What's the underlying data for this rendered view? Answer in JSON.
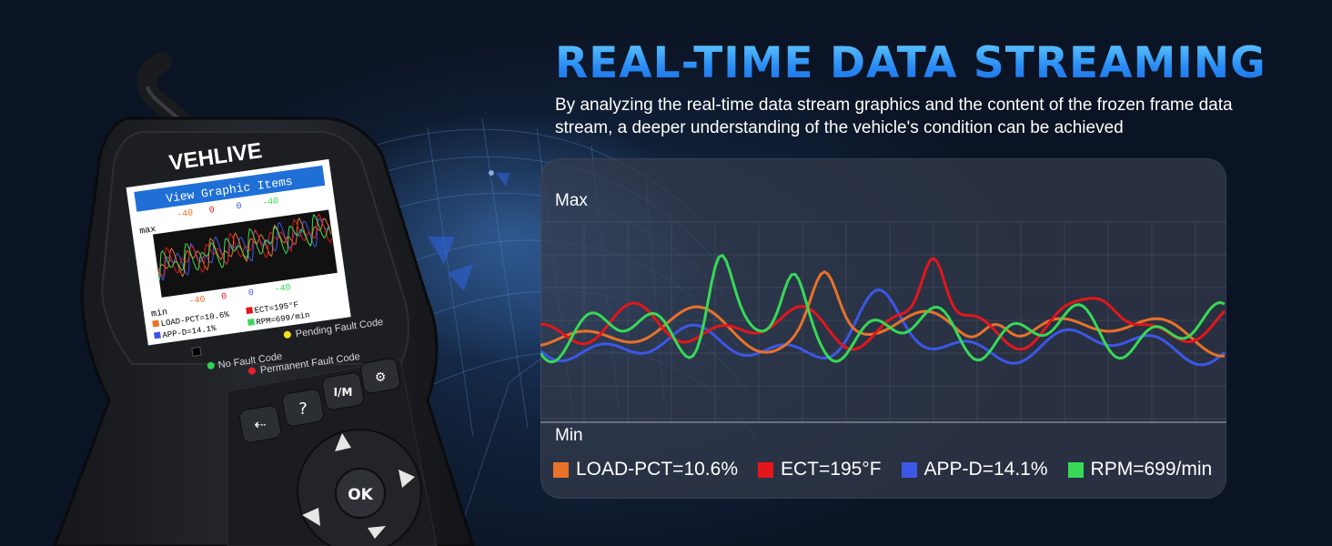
{
  "headline": "REAL-TIME DATA STREAMING",
  "subtitle": "By analyzing the real-time data stream graphics and the content of the frozen frame data stream, a deeper understanding of the vehicle's condition can be achieved",
  "device": {
    "brand": "VEHLIVE",
    "screen": {
      "title": "View Graphic Items",
      "top_values": [
        "-40",
        "0",
        "0",
        "-40"
      ],
      "max_label": "max",
      "min_label": "min",
      "bottom_values": [
        "-40",
        "0",
        "0",
        "-40"
      ],
      "readouts": [
        "LOAD-PCT=10.6%",
        "ECT=195°F",
        "APP-D=14.1%",
        "RPM=699/min"
      ]
    },
    "indicators": {
      "pending": "Pending Fault Code",
      "none": "No Fault Code",
      "permanent": "Permanent Fault Code"
    },
    "buttons": {
      "help": "?",
      "im": "I/M",
      "ok": "OK"
    },
    "colors": {
      "green": "#2fd14f",
      "yellow": "#f5e01c",
      "red": "#e8202a"
    }
  },
  "chart": {
    "max_label": "Max",
    "min_label": "Min",
    "legend": [
      {
        "label": "LOAD-PCT=10.6%",
        "color": "#e8722a"
      },
      {
        "label": "ECT=195°F",
        "color": "#e3161c"
      },
      {
        "label": "APP-D=14.1%",
        "color": "#3d57e6"
      },
      {
        "label": "RPM=699/min",
        "color": "#37d957"
      }
    ]
  }
}
